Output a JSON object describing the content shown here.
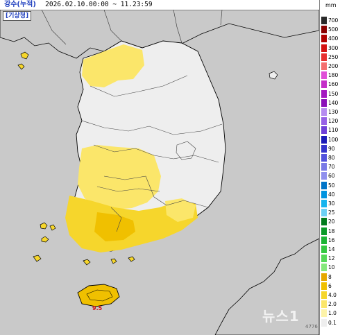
{
  "header": {
    "title": "강수(누적)",
    "period": "2026.02.10.00:00 ~ 11.23:59"
  },
  "agency_label": "[기상청]",
  "legend": {
    "unit": "mm",
    "items": [
      {
        "label": "700",
        "color": "#2a2a2a"
      },
      {
        "label": "500",
        "color": "#8a0000"
      },
      {
        "label": "400",
        "color": "#b00000"
      },
      {
        "label": "300",
        "color": "#d41111"
      },
      {
        "label": "250",
        "color": "#e82f2f"
      },
      {
        "label": "200",
        "color": "#f46f6f"
      },
      {
        "label": "180",
        "color": "#e050d8"
      },
      {
        "label": "160",
        "color": "#c430c8"
      },
      {
        "label": "150",
        "color": "#a318c0"
      },
      {
        "label": "140",
        "color": "#8a10b8"
      },
      {
        "label": "130",
        "color": "#b68cf0"
      },
      {
        "label": "120",
        "color": "#9660e6"
      },
      {
        "label": "110",
        "color": "#6f40d8"
      },
      {
        "label": "100",
        "color": "#1b1bb8"
      },
      {
        "label": "90",
        "color": "#3434cc"
      },
      {
        "label": "80",
        "color": "#5252dc"
      },
      {
        "label": "70",
        "color": "#7a7ae6"
      },
      {
        "label": "60",
        "color": "#9090ee"
      },
      {
        "label": "50",
        "color": "#0074c8"
      },
      {
        "label": "40",
        "color": "#0094e0"
      },
      {
        "label": "30",
        "color": "#16b4ee"
      },
      {
        "label": "25",
        "color": "#6cd0f4"
      },
      {
        "label": "20",
        "color": "#007a1c"
      },
      {
        "label": "18",
        "color": "#0a9a28"
      },
      {
        "label": "16",
        "color": "#1cb434"
      },
      {
        "label": "14",
        "color": "#34c840"
      },
      {
        "label": "12",
        "color": "#54d856"
      },
      {
        "label": "10",
        "color": "#86e87c"
      },
      {
        "label": "8",
        "color": "#e6a800"
      },
      {
        "label": "6",
        "color": "#f0c000"
      },
      {
        "label": "4.0",
        "color": "#f6d62c"
      },
      {
        "label": "2.0",
        "color": "#fbe66a"
      },
      {
        "label": "1.0",
        "color": "#fdf3a8"
      },
      {
        "label": "0.1",
        "color": "#eeeeee"
      }
    ]
  },
  "max_label": "9.5",
  "watermark": "뉴스1",
  "photo_id": "4776",
  "colors": {
    "sea": "#c9c9c9",
    "land_dry": "#eeeeee",
    "rain_light": "#fbe66a",
    "rain_mid": "#f6d62c",
    "rain_heavy": "#f0c000",
    "coast": "#000000",
    "province_border": "#444444"
  }
}
